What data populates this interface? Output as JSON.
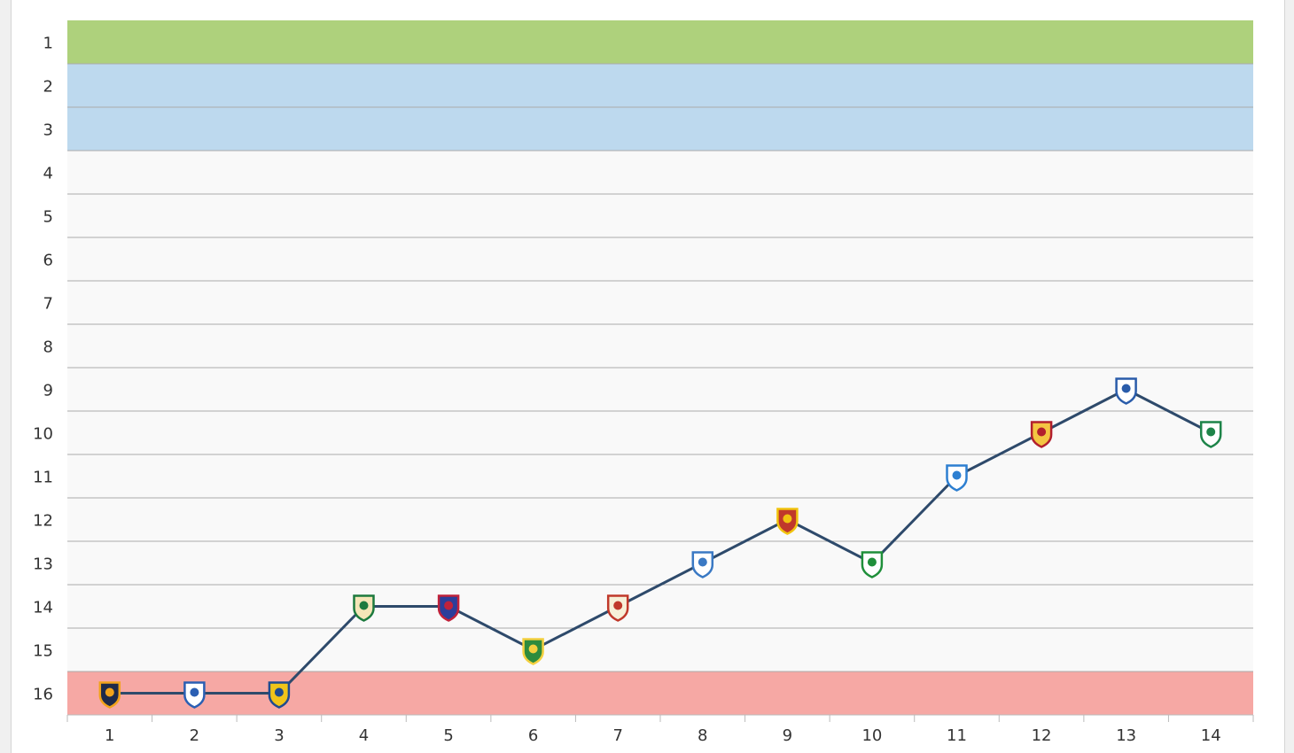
{
  "chart_data": {
    "type": "line",
    "title": "",
    "xlabel": "",
    "ylabel": "",
    "x": [
      1,
      2,
      3,
      4,
      5,
      6,
      7,
      8,
      9,
      10,
      11,
      12,
      13,
      14
    ],
    "series": [
      {
        "values": [
          16,
          16,
          16,
          14,
          14,
          15,
          14,
          13,
          12,
          13,
          11,
          10,
          9,
          10
        ]
      }
    ],
    "xlim": [
      0.5,
      14.5
    ],
    "ylim": [
      1,
      16
    ],
    "y_axis_inverted": true,
    "x_tick_labels": [
      "1",
      "2",
      "3",
      "4",
      "5",
      "6",
      "7",
      "8",
      "9",
      "10",
      "11",
      "12",
      "13",
      "14"
    ],
    "y_tick_labels": [
      "1",
      "2",
      "3",
      "4",
      "5",
      "6",
      "7",
      "8",
      "9",
      "10",
      "11",
      "12",
      "13",
      "14",
      "15",
      "16"
    ],
    "bands": [
      {
        "from": 1,
        "to": 1,
        "color": "#aed17c"
      },
      {
        "from": 2,
        "to": 3,
        "color": "#bdd9ee"
      },
      {
        "from": 16,
        "to": 16,
        "color": "#f6a8a4"
      }
    ],
    "background_color": "#f9f9f9",
    "gridline_color": "#aaaaaa",
    "line_color": "#2e4a6b",
    "point_icons": [
      "pogon-crest-icon",
      "wisla-plock-crest-icon",
      "arka-crest-icon",
      "zaglebie-crest-icon",
      "raków-crest-icon",
      "slask-crest-icon",
      "piast-crest-icon",
      "lech-crest-icon",
      "jagiellonia-crest-icon",
      "legia-crest-icon",
      "stal-crest-icon",
      "widzew-crest-icon",
      "gornik-crest-icon",
      "lechia-crest-icon"
    ],
    "grid": true
  }
}
